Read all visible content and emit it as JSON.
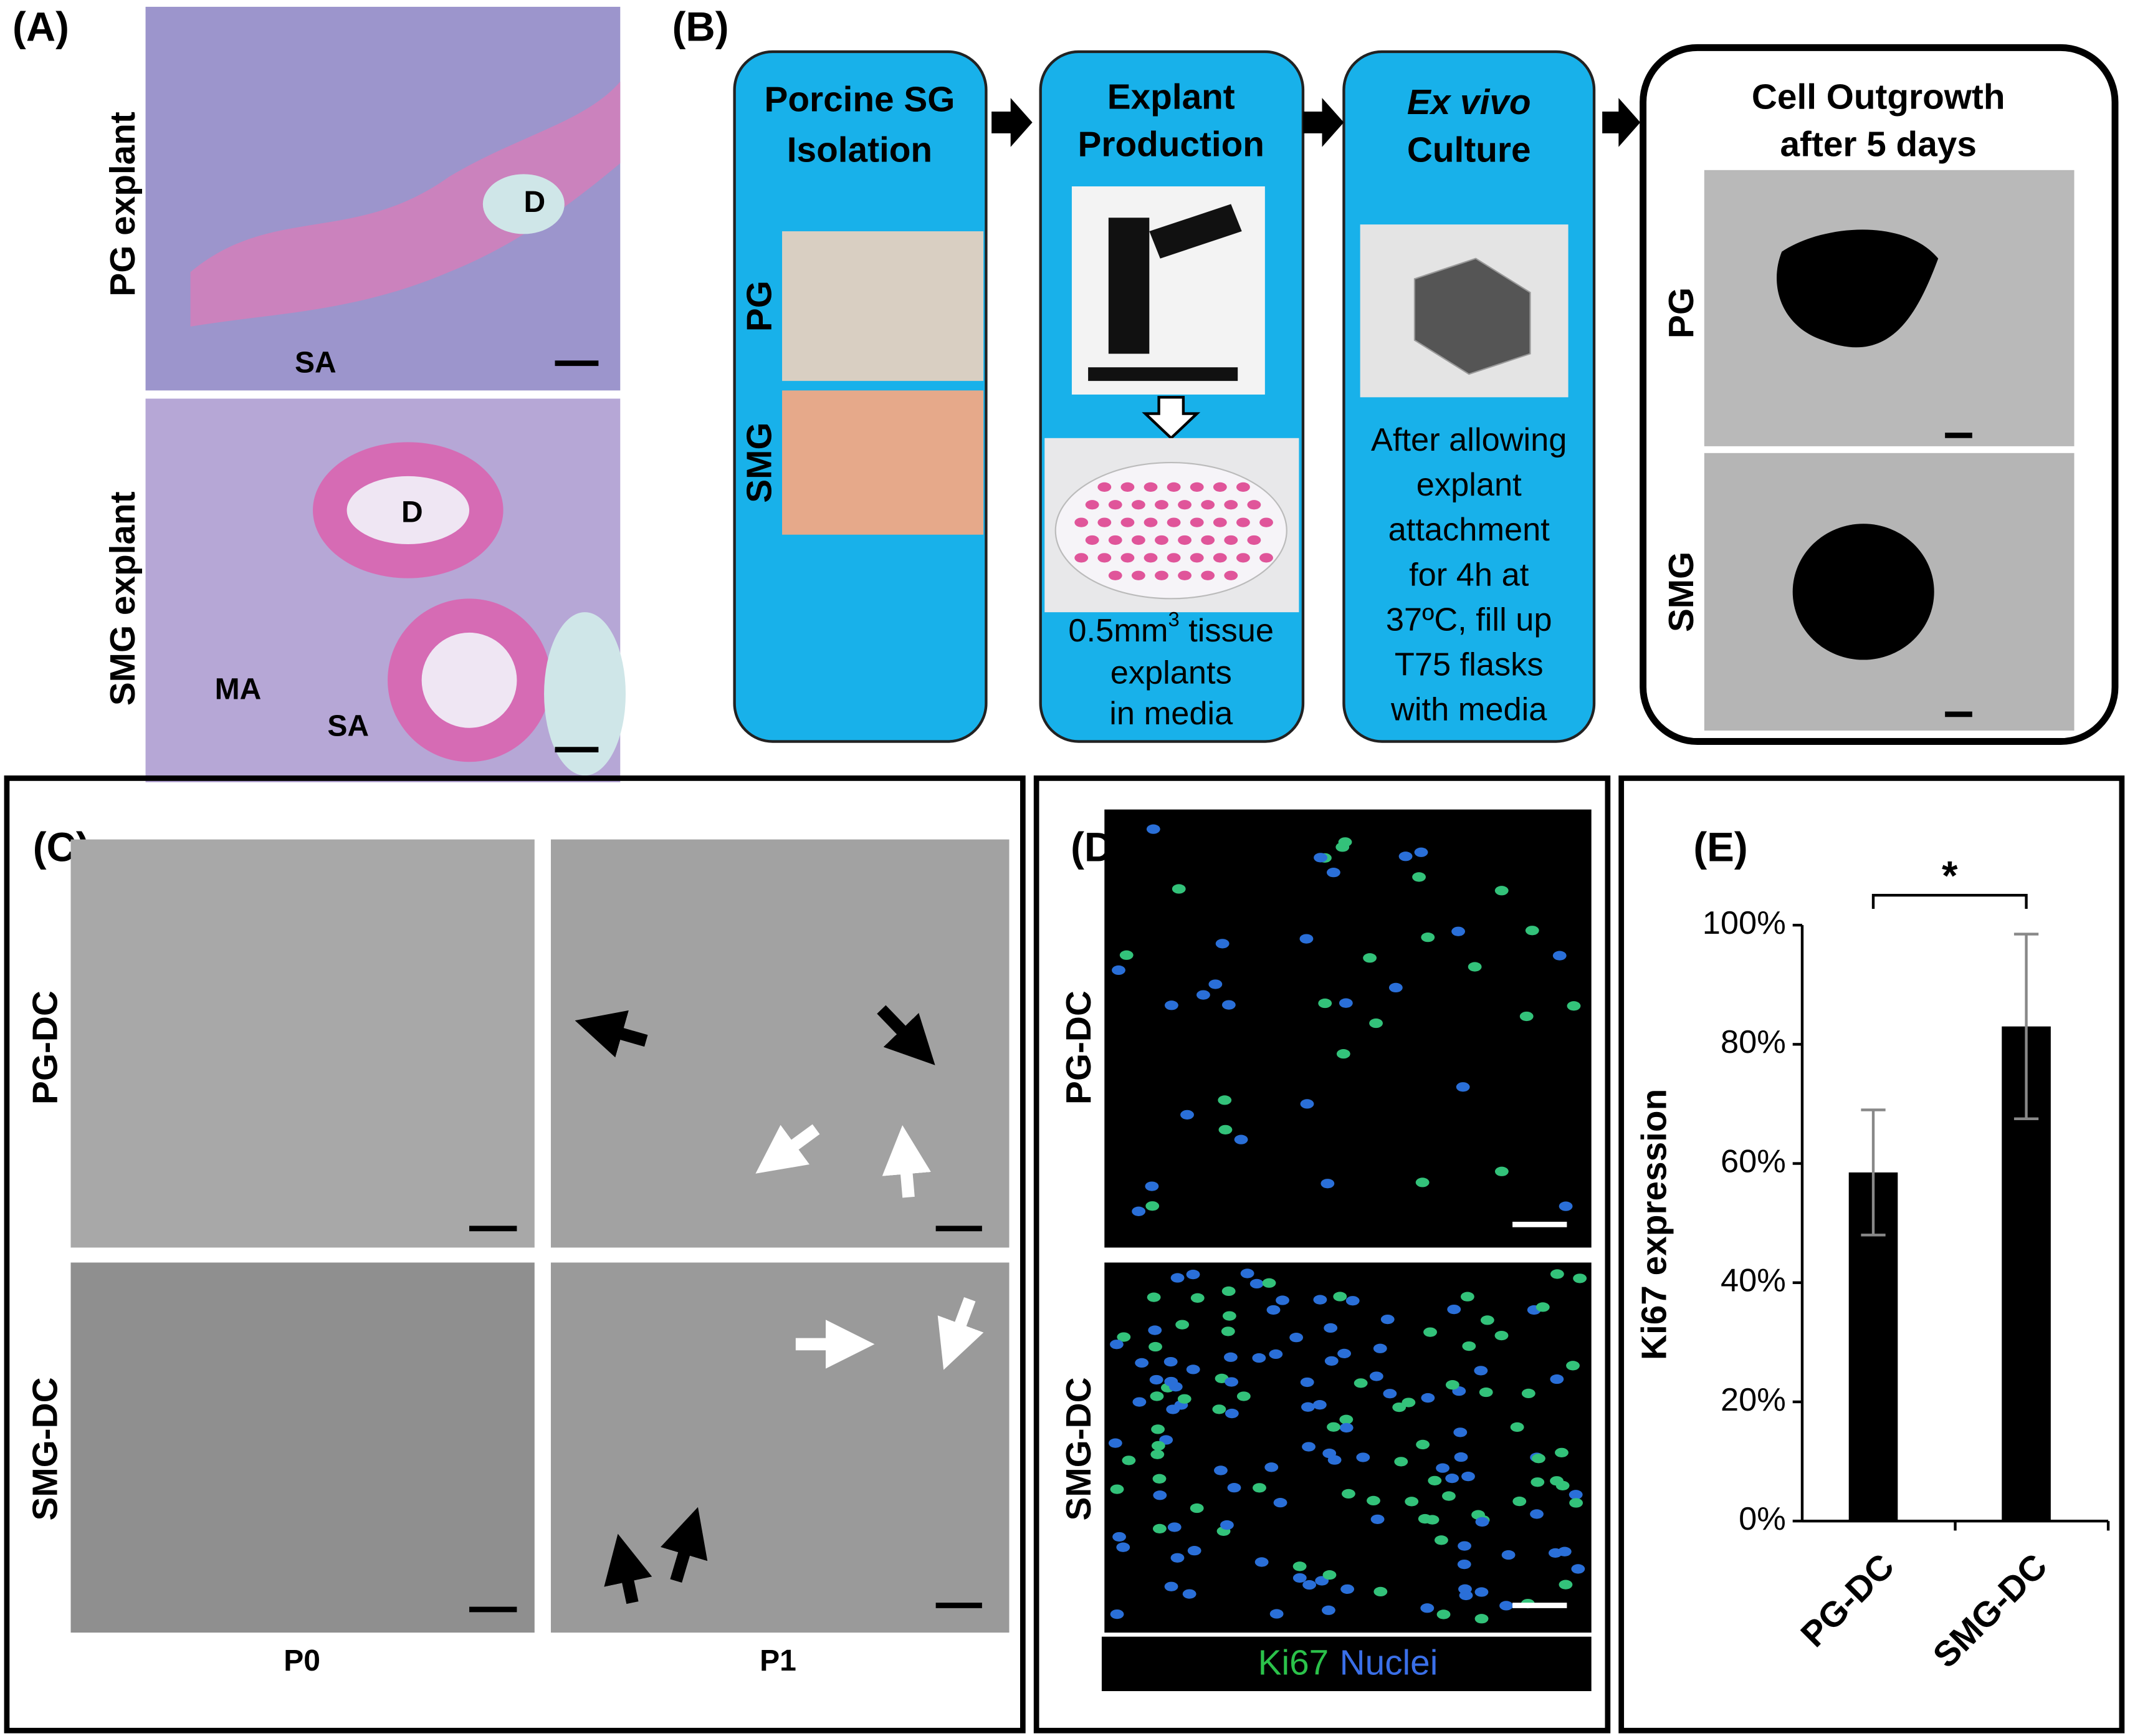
{
  "panel_a": {
    "label": "(A)",
    "rows": [
      "PG explant",
      "SMG explant"
    ],
    "annotations": [
      "D",
      "SA",
      "D",
      "MA",
      "SA"
    ]
  },
  "panel_b": {
    "label": "(B)",
    "steps": [
      {
        "title": [
          "Porcine SG",
          "Isolation"
        ],
        "rows": [
          "PG",
          "SMG"
        ]
      },
      {
        "title": [
          "Explant",
          "Production"
        ],
        "caption": {
          "base": "0.5mm",
          "sup": "3",
          "rest": " tissue"
        },
        "lines": [
          "explants",
          "in media"
        ]
      },
      {
        "title": [
          "Ex vivo",
          "Culture"
        ],
        "lines": [
          "After allowing",
          "explant",
          "attachment",
          "for 4h at",
          "37ºC, fill up",
          "T75 flasks",
          "with media"
        ]
      },
      {
        "title": [
          "Cell Outgrowth",
          "after 5 days"
        ],
        "rows": [
          "PG",
          "SMG"
        ]
      }
    ]
  },
  "panel_c": {
    "label": "(C)",
    "rows": [
      "PG-DC",
      "SMG-DC"
    ],
    "columns": [
      "P0",
      "P1"
    ]
  },
  "panel_d": {
    "label": "(D)",
    "rows": [
      "PG-DC",
      "SMG-DC"
    ],
    "legend": [
      "Ki67",
      "Nuclei"
    ]
  },
  "panel_e": {
    "label": "(E)"
  },
  "chart_data": {
    "type": "bar",
    "y_label": "Ki67 expression",
    "categories": [
      "PG-DC",
      "SMG-DC"
    ],
    "values": [
      58.5,
      83
    ],
    "errors": [
      10.5,
      15.5
    ],
    "color": "#000000",
    "error_color": "#888888",
    "annotation": "*",
    "ylim": [
      0,
      100
    ],
    "yticks": [
      {
        "value": 0,
        "label": "0%"
      },
      {
        "value": 20,
        "label": "20%"
      },
      {
        "value": 40,
        "label": "40%"
      },
      {
        "value": 60,
        "label": "60%"
      },
      {
        "value": 80,
        "label": "80%"
      },
      {
        "value": 100,
        "label": "100%"
      }
    ]
  }
}
